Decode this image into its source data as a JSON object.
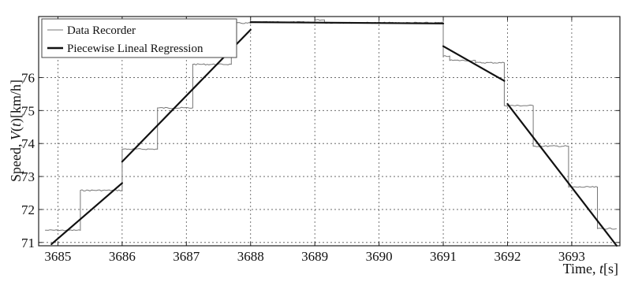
{
  "chart_data": {
    "type": "line",
    "xlabel": "Time, t[s]",
    "ylabel": "Speed, V(t)[km/h]",
    "xlim": [
      3684.7,
      3693.75
    ],
    "ylim": [
      70.9,
      77.85
    ],
    "xticks": [
      3685,
      3686,
      3687,
      3688,
      3689,
      3690,
      3691,
      3692,
      3693
    ],
    "yticks": [
      71,
      72,
      73,
      74,
      75,
      76
    ],
    "grid": true,
    "legend_position": "top-left",
    "legend": [
      "Data Recorder",
      "Piecewise Lineal Regression"
    ],
    "series": [
      {
        "name": "Data Recorder",
        "style": "thin-step",
        "color": "#777777",
        "x": [
          3684.8,
          3685.35,
          3685.35,
          3686.0,
          3686.0,
          3686.55,
          3686.55,
          3687.1,
          3687.1,
          3687.7,
          3687.7,
          3688.0,
          3688.0,
          3689.0,
          3689.0,
          3689.15,
          3689.15,
          3691.0,
          3691.0,
          3691.1,
          3691.1,
          3691.5,
          3691.5,
          3691.95,
          3691.95,
          3692.4,
          3692.4,
          3692.95,
          3692.95,
          3693.4,
          3693.4,
          3693.7
        ],
        "y": [
          71.37,
          71.37,
          72.58,
          72.58,
          73.83,
          73.83,
          75.08,
          75.08,
          76.4,
          76.4,
          77.65,
          77.65,
          77.68,
          77.68,
          77.75,
          77.75,
          77.66,
          77.66,
          76.65,
          76.65,
          76.52,
          76.52,
          76.45,
          76.45,
          75.15,
          75.15,
          73.92,
          73.92,
          72.68,
          72.68,
          71.42,
          71.42
        ]
      },
      {
        "name": "Piecewise Lineal Regression",
        "style": "thick-segments",
        "color": "#111111",
        "segments": [
          {
            "x": [
              3684.9,
              3686.0
            ],
            "y": [
              70.95,
              72.8
            ]
          },
          {
            "x": [
              3686.0,
              3688.0
            ],
            "y": [
              73.45,
              77.45
            ]
          },
          {
            "x": [
              3688.0,
              3691.0
            ],
            "y": [
              77.68,
              77.64
            ]
          },
          {
            "x": [
              3691.0,
              3691.95
            ],
            "y": [
              76.95,
              75.9
            ]
          },
          {
            "x": [
              3692.0,
              3693.7
            ],
            "y": [
              75.2,
              70.9
            ]
          }
        ]
      }
    ]
  }
}
